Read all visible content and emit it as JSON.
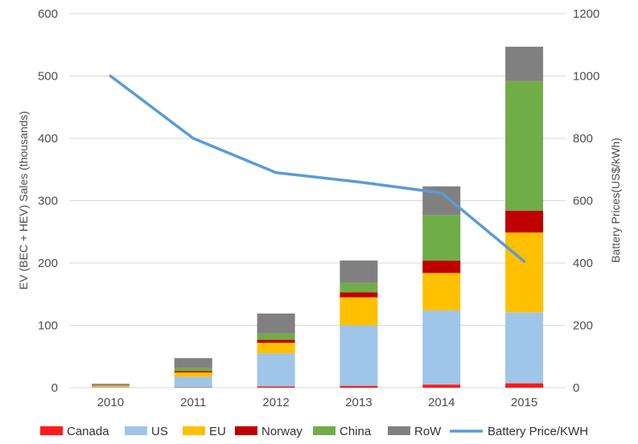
{
  "chart_data": {
    "type": "bar",
    "stacked": true,
    "categories": [
      "2010",
      "2011",
      "2012",
      "2013",
      "2014",
      "2015"
    ],
    "series": [
      {
        "name": "Canada",
        "color": "#ff1a1a",
        "values": [
          0.3,
          0.5,
          2,
          3,
          5,
          7
        ]
      },
      {
        "name": "US",
        "color": "#9fc5e8",
        "values": [
          1,
          17,
          53,
          97,
          119,
          114
        ]
      },
      {
        "name": "EU",
        "color": "#ffc000",
        "values": [
          2,
          7,
          17,
          45,
          60,
          128
        ]
      },
      {
        "name": "Norway",
        "color": "#c00000",
        "values": [
          0.5,
          2,
          5,
          8,
          20,
          35
        ]
      },
      {
        "name": "China",
        "color": "#70ad47",
        "values": [
          0.5,
          5,
          10,
          15,
          73,
          208
        ]
      },
      {
        "name": "RoW",
        "color": "#808080",
        "values": [
          2,
          16,
          32,
          36,
          46,
          55
        ]
      }
    ],
    "line_series": {
      "name": "Battery Price/KWH",
      "color": "#5b9bd5",
      "axis": "right",
      "values": [
        1000,
        800,
        690,
        660,
        625,
        405
      ]
    },
    "ylabel": "EV (BEC + HEV) Sales (thousands)",
    "y2label": "Battery Prices(US$/kWh)",
    "ylim": [
      0,
      600
    ],
    "y2lim": [
      0,
      1200
    ],
    "yticks": [
      "0",
      "100",
      "200",
      "300",
      "400",
      "500",
      "600"
    ],
    "y2ticks": [
      "0",
      "200",
      "400",
      "600",
      "800",
      "1000",
      "1200"
    ],
    "grid": true,
    "legend_position": "bottom"
  }
}
